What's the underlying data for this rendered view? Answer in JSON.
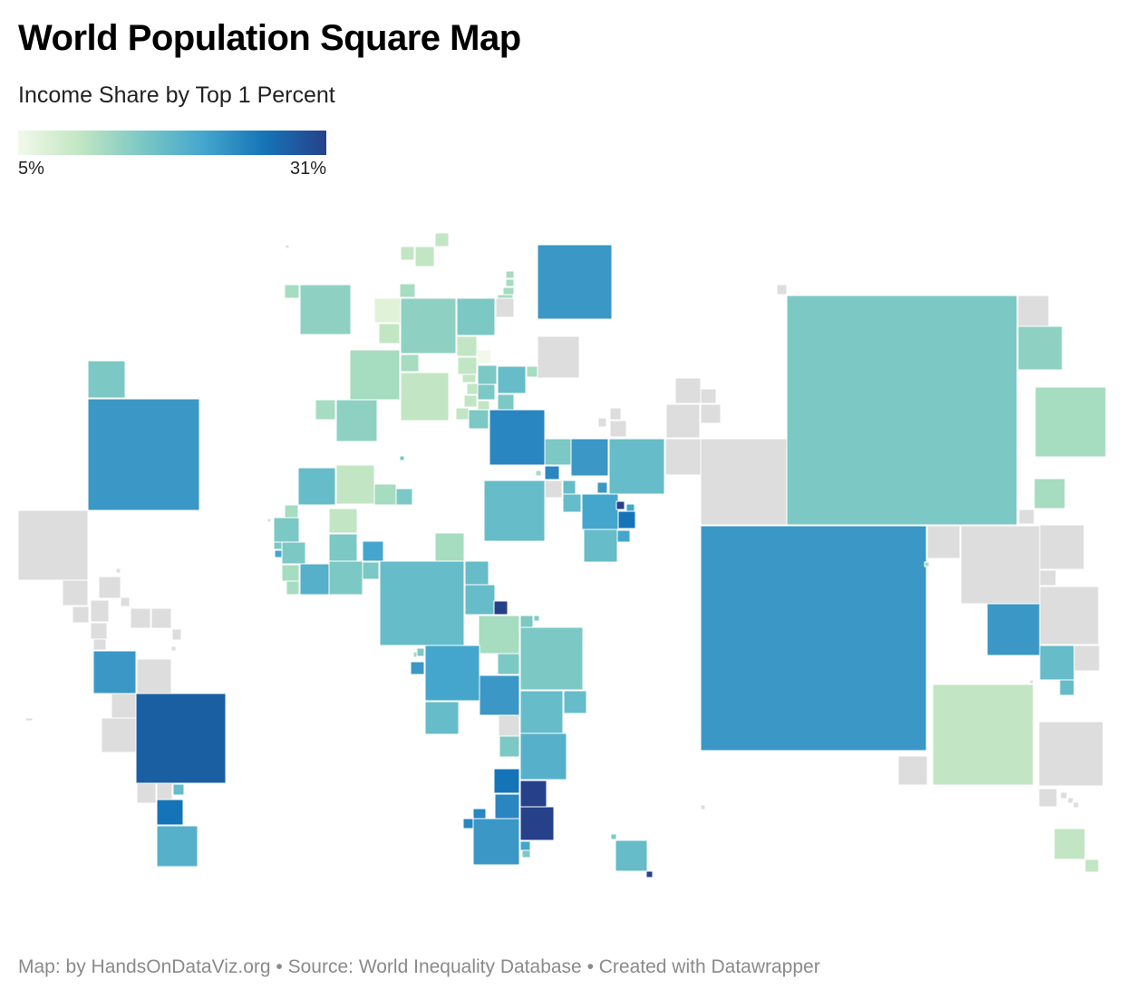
{
  "title": "World Population Square Map",
  "subtitle": "Income Share by Top 1 Percent",
  "legend": {
    "min_label": "5%",
    "max_label": "31%",
    "colors": [
      "#f2f9ea",
      "#c2e6c3",
      "#7cc8c4",
      "#45a6cd",
      "#1574b7",
      "#26418a"
    ]
  },
  "no_data_color": "#dddddd",
  "footer": "Map: by HandsOnDataViz.org • Source: World Inequality Database • Created with Datawrapper"
}
